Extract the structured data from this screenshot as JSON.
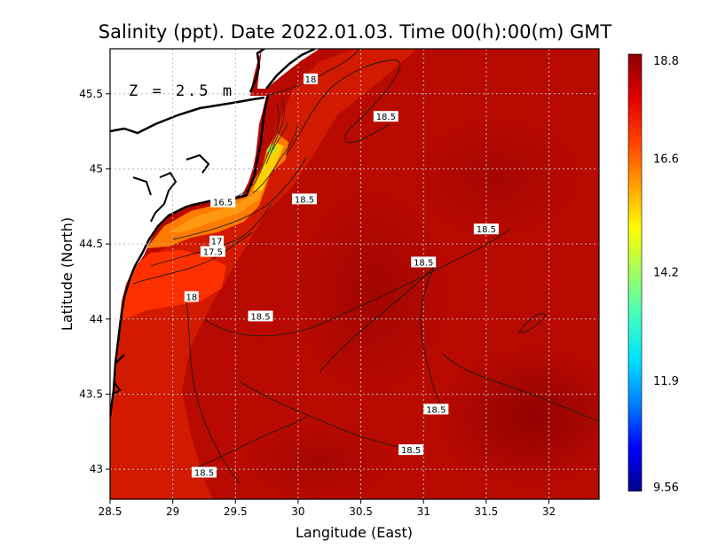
{
  "title": "Salinity (ppt). Date 2022.01.03. Time 00(h):00(m) GMT",
  "depth_label": "Z = 2.5 m",
  "chart_data": {
    "type": "heatmap",
    "variable": "Salinity (ppt)",
    "xlabel": "Langitude (East)",
    "ylabel": "Latitude (North)",
    "xlim": [
      28.5,
      32.4
    ],
    "ylim": [
      42.8,
      45.8
    ],
    "x_ticks": [
      "28.5",
      "29",
      "29.5",
      "30",
      "30.5",
      "31",
      "31.5",
      "32"
    ],
    "y_ticks": [
      "43",
      "43.5",
      "44",
      "44.5",
      "45",
      "45.5"
    ],
    "grid": true,
    "colorbar": {
      "position": "right",
      "tick_labels": [
        "18.8",
        "16.6",
        "14.2",
        "11.9",
        "9.56"
      ],
      "min": 9.56,
      "max": 18.8,
      "colors": [
        "#00008b",
        "#0000ff",
        "#0080ff",
        "#00e0ff",
        "#40ffc0",
        "#a0ff60",
        "#ffff00",
        "#ffa000",
        "#ff4000",
        "#e00000",
        "#900000"
      ]
    },
    "contour_labels": [
      {
        "text": "18",
        "lon": 30.1,
        "lat": 45.6
      },
      {
        "text": "18.5",
        "lon": 30.7,
        "lat": 45.35
      },
      {
        "text": "18.5",
        "lon": 30.05,
        "lat": 44.8
      },
      {
        "text": "16.5",
        "lon": 29.4,
        "lat": 44.78
      },
      {
        "text": "17",
        "lon": 29.35,
        "lat": 44.52
      },
      {
        "text": "17.5",
        "lon": 29.32,
        "lat": 44.45
      },
      {
        "text": "18",
        "lon": 29.15,
        "lat": 44.15
      },
      {
        "text": "18.5",
        "lon": 29.7,
        "lat": 44.02
      },
      {
        "text": "18.5",
        "lon": 31.5,
        "lat": 44.6
      },
      {
        "text": "18.5",
        "lon": 31.0,
        "lat": 44.38
      },
      {
        "text": "18.5",
        "lon": 31.1,
        "lat": 43.4
      },
      {
        "text": "18.5",
        "lon": 30.9,
        "lat": 43.13
      },
      {
        "text": "18.5",
        "lon": 29.25,
        "lat": 42.98
      }
    ]
  }
}
